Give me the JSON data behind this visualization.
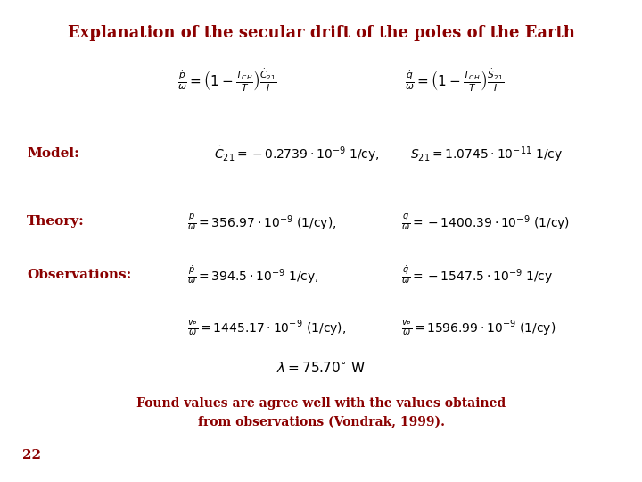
{
  "title": "Explanation of the secular drift of the poles of the Earth",
  "title_color": "#8B0000",
  "title_fontsize": 13,
  "text_color": "#8B0000",
  "math_color": "black",
  "label_Model": "Model:",
  "label_Theory": "Theory:",
  "label_Observations": "Observations:",
  "label_color": "#8B0000",
  "label_fontsize": 11,
  "math_fontsize": 10,
  "footer_line1": "Found values are agree well with the values obtained",
  "footer_line2": "from observations (Vondrak, 1999).",
  "page_num": "22"
}
